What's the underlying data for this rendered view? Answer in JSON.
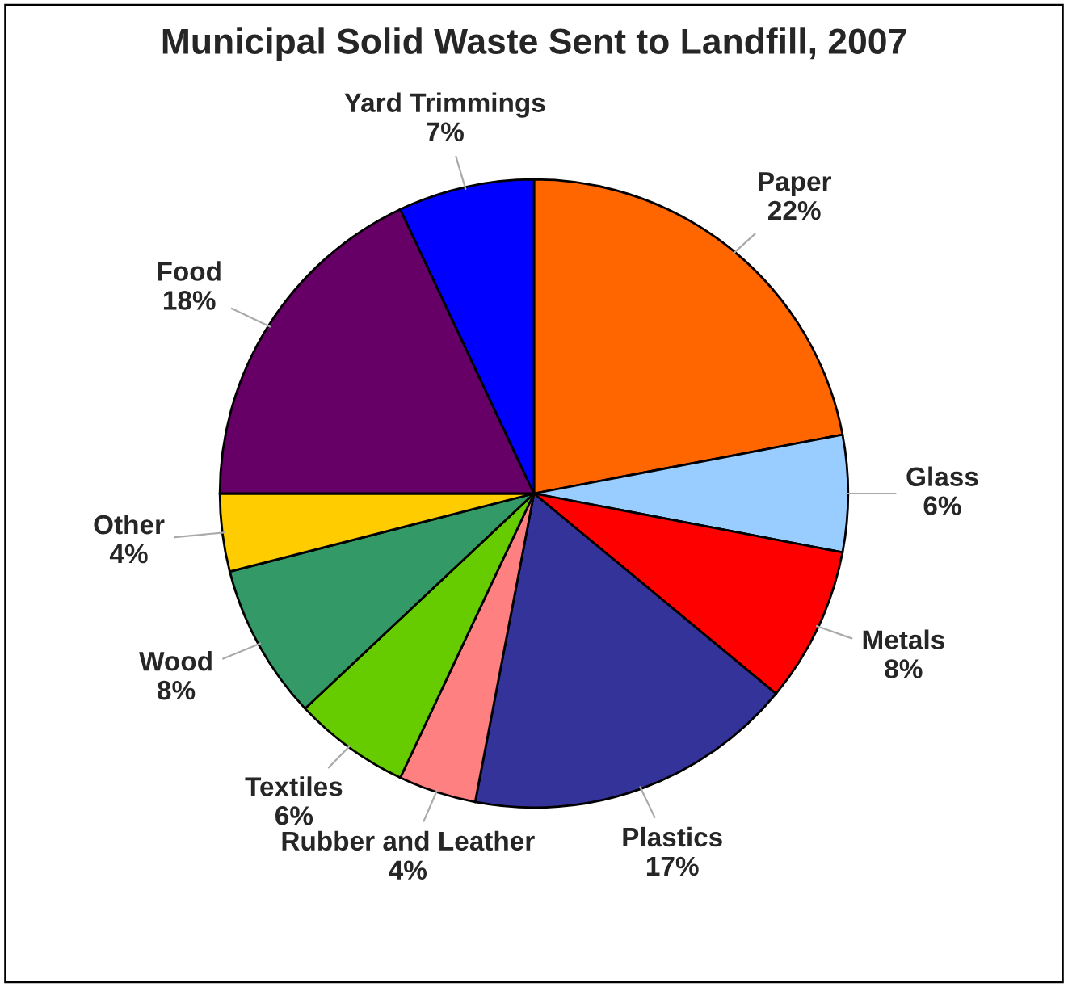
{
  "chart_data": {
    "type": "pie",
    "title": "Municipal Solid Waste Sent to Landfill, 2007",
    "categories": [
      "Paper",
      "Glass",
      "Metals",
      "Plastics",
      "Rubber and Leather",
      "Textiles",
      "Wood",
      "Other",
      "Food",
      "Yard Trimmings"
    ],
    "values": [
      22,
      6,
      8,
      17,
      4,
      6,
      8,
      4,
      18,
      7
    ],
    "value_labels": [
      "22%",
      "6%",
      "8%",
      "17%",
      "4%",
      "6%",
      "8%",
      "4%",
      "18%",
      "7%"
    ],
    "colors": [
      "#ff6600",
      "#99ccff",
      "#ff0000",
      "#333399",
      "#ff8080",
      "#66cc00",
      "#339966",
      "#ffcc00",
      "#660066",
      "#0000ff"
    ]
  }
}
